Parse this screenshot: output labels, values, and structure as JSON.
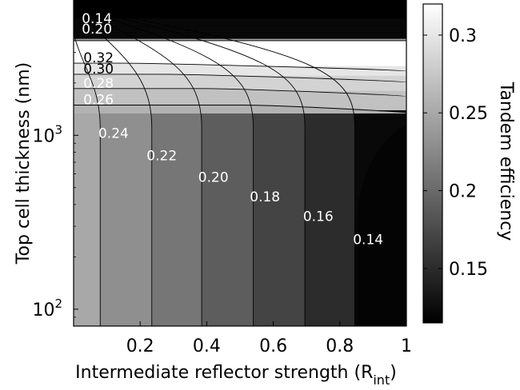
{
  "chart_data": {
    "type": "heatmap",
    "subtype": "filled-contour",
    "title": "",
    "xlabel": "Intermediate reflector strength",
    "xlabel_symbol": "R",
    "xlabel_subscript": "int",
    "ylabel": "Top cell thickness (nm)",
    "colorbar_label": "Tandem efficiency",
    "x_scale": "linear",
    "y_scale": "log",
    "xlim": [
      0,
      1
    ],
    "ylim": [
      80,
      6000
    ],
    "x_ticks": [
      0.2,
      0.4,
      0.6,
      0.8,
      1.0
    ],
    "x_tick_labels": [
      "0.2",
      "0.4",
      "0.6",
      "0.8",
      "1"
    ],
    "y_ticks": [
      100,
      1000
    ],
    "y_tick_base": "10",
    "y_tick_exponents": [
      "2",
      "3"
    ],
    "colormap": "gray",
    "colorbar_range": [
      0.115,
      0.32
    ],
    "colorbar_ticks": [
      0.15,
      0.2,
      0.25,
      0.3
    ],
    "colorbar_tick_labels": [
      "0.15",
      "0.2",
      "0.25",
      "0.3"
    ],
    "vertical_contours": [
      {
        "level": 0.24,
        "label": "0.24",
        "x_at_bottom": 0.08,
        "label_x": 0.12,
        "label_y": 1020
      },
      {
        "level": 0.22,
        "label": "0.22",
        "x_at_bottom": 0.235,
        "label_x": 0.265,
        "label_y": 760
      },
      {
        "level": 0.2,
        "label": "0.20",
        "x_at_bottom": 0.385,
        "label_x": 0.42,
        "label_y": 570
      },
      {
        "level": 0.18,
        "label": "0.18",
        "x_at_bottom": 0.54,
        "label_x": 0.575,
        "label_y": 440
      },
      {
        "level": 0.16,
        "label": "0.16",
        "x_at_bottom": 0.695,
        "label_x": 0.735,
        "label_y": 340
      },
      {
        "level": 0.14,
        "label": "0.14",
        "x_at_bottom": 0.845,
        "label_x": 0.885,
        "label_y": 250
      }
    ],
    "horizontal_contour_labels": [
      {
        "label": "0.14",
        "x": 0.07,
        "y": 4650
      },
      {
        "label": "0.20",
        "x": 0.07,
        "y": 4050
      },
      {
        "label": "0.32",
        "x": 0.075,
        "y": 2770
      },
      {
        "label": "0.30",
        "x": 0.075,
        "y": 2390
      },
      {
        "label": "0.28",
        "x": 0.075,
        "y": 1980
      },
      {
        "label": "0.26",
        "x": 0.075,
        "y": 1590
      }
    ],
    "region_efficiency_at_x0": [
      {
        "y": 6000,
        "value": 0.115
      },
      {
        "y": 4700,
        "value": 0.125
      },
      {
        "y": 3600,
        "value": 0.25
      },
      {
        "y": 3200,
        "value": 0.32
      },
      {
        "y": 2800,
        "value": 0.32
      },
      {
        "y": 2500,
        "value": 0.3
      },
      {
        "y": 2200,
        "value": 0.285
      },
      {
        "y": 1800,
        "value": 0.27
      },
      {
        "y": 1400,
        "value": 0.258
      },
      {
        "y": 1000,
        "value": 0.252
      },
      {
        "y": 80,
        "value": 0.25
      }
    ],
    "grid": false,
    "legend": "none"
  }
}
